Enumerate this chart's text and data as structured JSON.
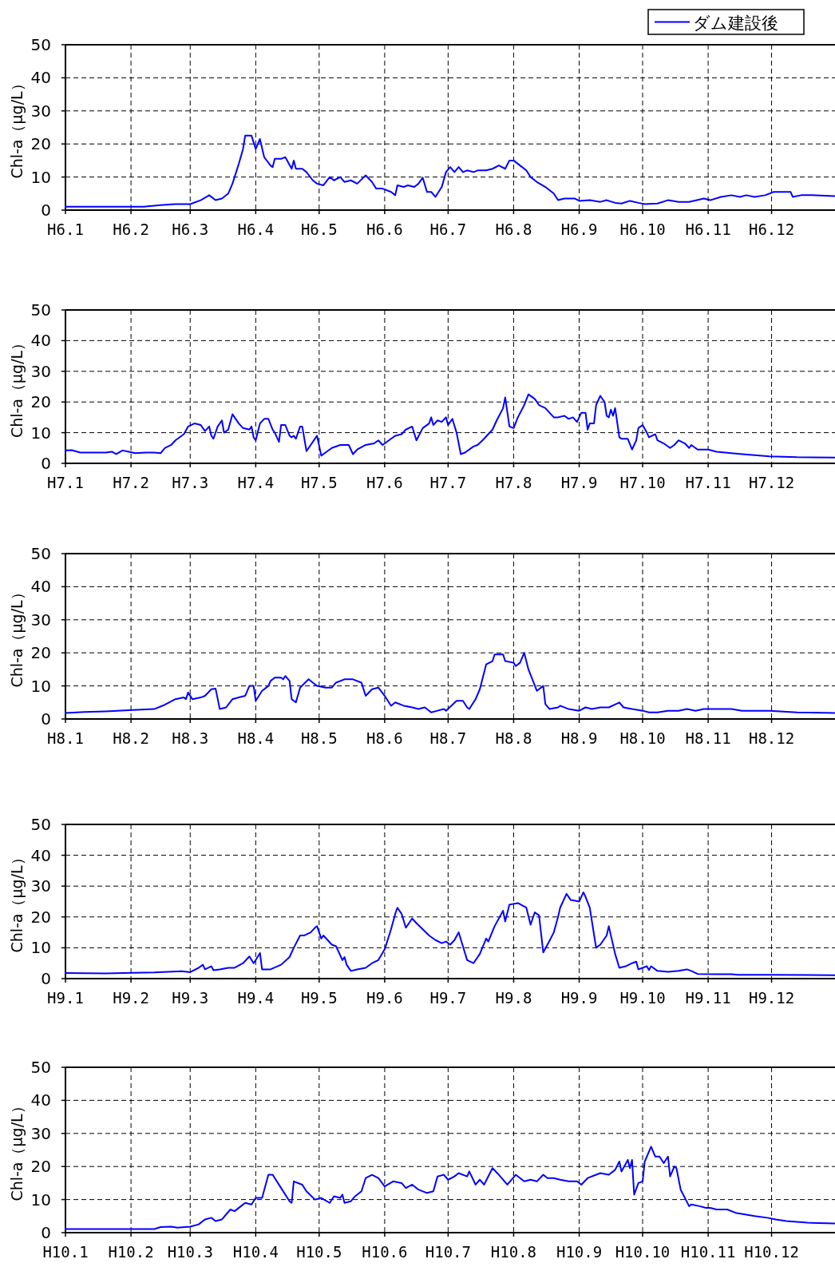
{
  "chart_data": [
    {
      "type": "line",
      "ylabel": "Chl-a（μg/L）",
      "legend": "top right",
      "grid": true,
      "xlim": [
        "--01-01",
        "--12-31"
      ],
      "ylim": [
        0,
        50
      ],
      "yticks": [
        0,
        10,
        20,
        30,
        40,
        50
      ],
      "xticks": [
        {
          "value": "--01-01",
          "label": "H6.1"
        },
        {
          "value": "--02-01",
          "label": "H6.2"
        },
        {
          "value": "--03-01",
          "label": "H6.3"
        },
        {
          "value": "--04-01",
          "label": "H6.4"
        },
        {
          "value": "--05-01",
          "label": "H6.5"
        },
        {
          "value": "--06-01",
          "label": "H6.6"
        },
        {
          "value": "--07-01",
          "label": "H6.7"
        },
        {
          "value": "--08-01",
          "label": "H6.8"
        },
        {
          "value": "--09-01",
          "label": "H6.9"
        },
        {
          "value": "--10-01",
          "label": "H6.10"
        },
        {
          "value": "--11-01",
          "label": "H6.11"
        },
        {
          "value": "--12-01",
          "label": "H6.12"
        }
      ],
      "series": [
        {
          "name": "ダム建設後",
          "color": "#0000ff",
          "x": [
            "--01-01",
            "--02-07",
            "--02-15",
            "--02-22",
            "--03-01",
            "--03-06",
            "--03-10",
            "--03-13",
            "--03-16",
            "--03-19",
            "--03-21",
            "--03-24",
            "--03-26",
            "--03-27",
            "--03-30",
            "--04-01",
            "--04-03",
            "--04-05",
            "--04-08",
            "--04-09",
            "--04-10",
            "--04-13",
            "--04-15",
            "--04-18",
            "--04-19",
            "--04-20",
            "--04-23",
            "--04-25",
            "--04-28",
            "--04-30",
            "--05-03",
            "--05-06",
            "--05-08",
            "--05-11",
            "--05-13",
            "--05-16",
            "--05-19",
            "--05-23",
            "--05-26",
            "--05-28",
            "--05-31",
            "--06-04",
            "--06-06",
            "--06-07",
            "--06-10",
            "--06-12",
            "--06-15",
            "--06-17",
            "--06-19",
            "--06-21",
            "--06-23",
            "--06-25",
            "--06-26",
            "--06-28",
            "--06-30",
            "--07-02",
            "--07-04",
            "--07-06",
            "--07-08",
            "--07-10",
            "--07-13",
            "--07-15",
            "--07-19",
            "--07-22",
            "--07-25",
            "--07-28",
            "--07-30",
            "--08-01",
            "--08-04",
            "--08-07",
            "--08-09",
            "--08-12",
            "--08-16",
            "--08-20",
            "--08-22",
            "--08-25",
            "--08-30",
            "--09-01",
            "--09-06",
            "--09-11",
            "--09-14",
            "--09-18",
            "--09-21",
            "--09-25",
            "--09-29",
            "--10-02",
            "--10-08",
            "--10-13",
            "--10-18",
            "--10-23",
            "--10-30",
            "--11-02",
            "--11-07",
            "--11-12",
            "--11-16",
            "--11-19",
            "--11-23",
            "--11-28",
            "--12-02",
            "--12-07",
            "--12-10",
            "--12-11",
            "--12-15",
            "--12-20",
            "--12-31"
          ],
          "values": [
            1,
            1,
            1.5,
            1.8,
            1.8,
            3,
            4.5,
            3,
            3.5,
            5,
            8,
            14,
            18.5,
            22.5,
            22.5,
            18.5,
            21.5,
            16,
            13.5,
            13,
            15.5,
            15.5,
            16,
            12.5,
            15,
            12.5,
            12.5,
            11.5,
            9,
            8,
            7.5,
            10,
            9,
            10,
            8.5,
            9,
            8,
            10.5,
            8.5,
            6.5,
            6.5,
            5.5,
            4.5,
            7.5,
            7,
            7.5,
            7,
            8,
            9.8,
            5.5,
            5.5,
            4,
            5,
            7,
            11.5,
            13,
            11.5,
            13,
            11.5,
            12,
            11.5,
            12,
            12,
            12.5,
            13.5,
            12.5,
            15,
            15,
            13.5,
            12,
            10,
            8.5,
            7,
            5,
            3,
            3.5,
            3.5,
            2.8,
            3,
            2.5,
            3,
            2.2,
            2,
            2.8,
            2.2,
            1.8,
            2,
            3,
            2.5,
            2.5,
            3.5,
            3,
            4,
            4.5,
            4,
            4.5,
            4,
            4.5,
            5.5,
            5.5,
            5.5,
            4,
            4.5,
            4.5,
            4.2
          ]
        }
      ]
    },
    {
      "type": "line",
      "ylabel": "Chl-a（μg/L）",
      "grid": true,
      "xlim": [
        "--01-01",
        "--12-31"
      ],
      "ylim": [
        0,
        50
      ],
      "yticks": [
        0,
        10,
        20,
        30,
        40,
        50
      ],
      "xticks": [
        {
          "value": "--01-01",
          "label": "H7.1"
        },
        {
          "value": "--02-01",
          "label": "H7.2"
        },
        {
          "value": "--03-01",
          "label": "H7.3"
        },
        {
          "value": "--04-01",
          "label": "H7.4"
        },
        {
          "value": "--05-01",
          "label": "H7.5"
        },
        {
          "value": "--06-01",
          "label": "H7.6"
        },
        {
          "value": "--07-01",
          "label": "H7.7"
        },
        {
          "value": "--08-01",
          "label": "H7.8"
        },
        {
          "value": "--09-01",
          "label": "H7.9"
        },
        {
          "value": "--10-01",
          "label": "H7.10"
        },
        {
          "value": "--11-01",
          "label": "H7.11"
        },
        {
          "value": "--12-01",
          "label": "H7.12"
        }
      ],
      "series": [
        {
          "color": "#0000ff",
          "x": [
            "--01-01",
            "--01-04",
            "--01-08",
            "--01-13",
            "--01-20",
            "--01-23",
            "--01-25",
            "--01-28",
            "--01-31",
            "--02-03",
            "--02-08",
            "--02-12",
            "--02-15",
            "--02-17",
            "--02-20",
            "--02-22",
            "--02-26",
            "--02-28",
            "--03-03",
            "--03-06",
            "--03-08",
            "--03-10",
            "--03-11",
            "--03-12",
            "--03-14",
            "--03-16",
            "--03-17",
            "--03-19",
            "--03-21",
            "--03-24",
            "--03-26",
            "--03-29",
            "--03-30",
            "--03-31",
            "--04-01",
            "--04-03",
            "--04-05",
            "--04-07",
            "--04-09",
            "--04-10",
            "--04-12",
            "--04-13",
            "--04-15",
            "--04-17",
            "--04-18",
            "--04-19",
            "--04-20",
            "--04-22",
            "--04-23",
            "--04-25",
            "--04-27",
            "--04-28",
            "--04-30",
            "--05-02",
            "--05-04",
            "--05-07",
            "--05-11",
            "--05-15",
            "--05-17",
            "--05-19",
            "--05-23",
            "--05-27",
            "--05-29",
            "--05-31",
            "--06-04",
            "--06-06",
            "--06-09",
            "--06-11",
            "--06-14",
            "--06-16",
            "--06-19",
            "--06-22",
            "--06-23",
            "--06-24",
            "--06-26",
            "--06-28",
            "--06-30",
            "--07-01",
            "--07-03",
            "--07-05",
            "--07-07",
            "--07-09",
            "--07-13",
            "--07-15",
            "--07-18",
            "--07-22",
            "--07-24",
            "--07-27",
            "--07-28",
            "--07-30",
            "--08-01",
            "--08-03",
            "--08-06",
            "--08-08",
            "--08-11",
            "--08-13",
            "--08-16",
            "--08-20",
            "--08-22",
            "--08-25",
            "--08-27",
            "--08-29",
            "--08-31",
            "--09-02",
            "--09-04",
            "--09-05",
            "--09-06",
            "--09-08",
            "--09-09",
            "--09-11",
            "--09-13",
            "--09-14",
            "--09-15",
            "--09-16",
            "--09-17",
            "--09-18",
            "--09-20",
            "--09-21",
            "--09-24",
            "--09-26",
            "--09-28",
            "--09-29",
            "--10-01",
            "--10-03",
            "--10-04",
            "--10-07",
            "--10-08",
            "--10-11",
            "--10-14",
            "--10-16",
            "--10-18",
            "--10-21",
            "--10-23",
            "--10-24",
            "--10-27",
            "--11-01",
            "--11-05",
            "--11-17",
            "--11-30",
            "--12-13",
            "--12-31"
          ],
          "values": [
            4.2,
            4.3,
            3.5,
            3.5,
            3.5,
            3.8,
            3,
            4.2,
            3.8,
            3.3,
            3.5,
            3.5,
            3.3,
            5,
            6,
            7.5,
            9.5,
            12,
            13,
            12.5,
            10.5,
            12,
            9,
            8,
            12,
            14,
            10,
            11,
            16,
            13,
            11.5,
            11,
            12,
            8.5,
            7.5,
            13,
            14.5,
            14.5,
            11,
            10,
            7,
            12.5,
            12.5,
            9,
            8.5,
            9,
            8,
            12,
            12,
            4,
            6,
            7,
            9,
            2.5,
            3.5,
            5,
            6,
            6,
            3,
            4.5,
            6,
            6.5,
            7.5,
            6,
            8,
            9,
            9.5,
            11,
            12,
            7.5,
            11.5,
            13,
            15,
            12.5,
            14,
            13.5,
            15,
            12.5,
            14.5,
            10,
            3,
            3.5,
            5.5,
            6,
            8,
            11,
            14,
            18,
            21.5,
            12,
            11.5,
            15,
            19,
            22.5,
            21,
            19,
            18,
            15,
            15,
            15.5,
            14.5,
            15,
            13.5,
            16.5,
            16.5,
            11,
            13,
            13,
            19,
            22,
            20,
            15.5,
            15,
            17.5,
            15.5,
            18,
            8.5,
            8,
            8,
            4.5,
            7.5,
            11.5,
            12.5,
            10,
            8.5,
            9.5,
            7.5,
            6.5,
            5,
            6,
            7.5,
            6.5,
            5,
            6,
            4.5,
            4.5,
            3.8,
            3,
            2.3,
            2,
            1.9
          ]
        }
      ]
    },
    {
      "type": "line",
      "ylabel": "Chl-a（μg/L）",
      "grid": true,
      "xlim": [
        "--01-01",
        "--12-31"
      ],
      "ylim": [
        0,
        50
      ],
      "yticks": [
        0,
        10,
        20,
        30,
        40,
        50
      ],
      "xticks": [
        {
          "value": "--01-01",
          "label": "H8.1"
        },
        {
          "value": "--02-01",
          "label": "H8.2"
        },
        {
          "value": "--03-01",
          "label": "H8.3"
        },
        {
          "value": "--04-01",
          "label": "H8.4"
        },
        {
          "value": "--05-01",
          "label": "H8.5"
        },
        {
          "value": "--06-01",
          "label": "H8.6"
        },
        {
          "value": "--07-01",
          "label": "H8.7"
        },
        {
          "value": "--08-01",
          "label": "H8.8"
        },
        {
          "value": "--09-01",
          "label": "H8.9"
        },
        {
          "value": "--10-01",
          "label": "H8.10"
        },
        {
          "value": "--11-01",
          "label": "H8.11"
        },
        {
          "value": "--12-01",
          "label": "H8.12"
        }
      ],
      "series": [
        {
          "color": "#0000ff",
          "x": [
            "--01-01",
            "--01-10",
            "--01-20",
            "--02-02",
            "--02-12",
            "--02-17",
            "--02-22",
            "--02-26",
            "--02-27",
            "--02-28",
            "--03-02",
            "--03-06",
            "--03-08",
            "--03-11",
            "--03-13",
            "--03-15",
            "--03-18",
            "--03-21",
            "--03-24",
            "--03-27",
            "--03-29",
            "--03-31",
            "--04-01",
            "--04-04",
            "--04-07",
            "--04-08",
            "--04-10",
            "--04-13",
            "--04-14",
            "--04-15",
            "--04-17",
            "--04-18",
            "--04-20",
            "--04-22",
            "--04-26",
            "--04-28",
            "--04-30",
            "--05-04",
            "--05-07",
            "--05-09",
            "--05-13",
            "--05-17",
            "--05-21",
            "--05-23",
            "--05-26",
            "--05-29",
            "--06-01",
            "--06-04",
            "--06-06",
            "--06-10",
            "--06-14",
            "--06-17",
            "--06-20",
            "--06-23",
            "--06-26",
            "--06-29",
            "--06-30",
            "--07-05",
            "--07-08",
            "--07-10",
            "--07-11",
            "--07-14",
            "--07-16",
            "--07-19",
            "--07-22",
            "--07-23",
            "--07-27",
            "--07-28",
            "--08-01",
            "--08-02",
            "--08-04",
            "--08-06",
            "--08-08",
            "--08-12",
            "--08-15",
            "--08-16",
            "--08-18",
            "--08-22",
            "--08-23",
            "--08-27",
            "--09-01",
            "--09-04",
            "--09-07",
            "--09-11",
            "--09-15",
            "--09-20",
            "--09-22",
            "--09-26",
            "--10-01",
            "--10-04",
            "--10-08",
            "--10-13",
            "--10-18",
            "--10-22",
            "--10-26",
            "--10-30",
            "--11-04",
            "--11-07",
            "--11-12",
            "--11-17",
            "--11-30",
            "--12-13",
            "--12-31"
          ],
          "values": [
            1.8,
            2.1,
            2.3,
            2.7,
            3,
            4.3,
            6,
            6.5,
            6,
            8,
            6,
            6.5,
            7,
            9,
            9.2,
            3,
            3.5,
            6,
            6.5,
            7,
            10,
            10,
            5.5,
            8.5,
            10,
            11.5,
            12.5,
            12.5,
            12,
            13,
            11.5,
            6,
            5,
            9.5,
            12,
            11,
            10,
            9.5,
            9.5,
            11,
            12,
            12,
            11,
            7,
            9,
            9.5,
            7,
            4,
            5,
            4,
            3.5,
            3,
            3.5,
            2,
            2.5,
            3,
            2.5,
            5.5,
            5.5,
            3.5,
            3,
            6,
            9,
            16.5,
            17.5,
            19.5,
            19.5,
            17.5,
            17,
            16,
            17,
            20,
            15,
            8.5,
            10,
            4.5,
            3,
            3.5,
            4,
            3,
            2.5,
            3.5,
            3,
            3.5,
            3.5,
            5,
            3.5,
            3,
            2.5,
            2,
            2,
            2.5,
            2.5,
            3,
            2.5,
            3,
            3,
            3,
            3,
            2.5,
            2.5,
            2,
            1.8
          ]
        }
      ]
    },
    {
      "type": "line",
      "ylabel": "Chl-a（μg/L）",
      "grid": true,
      "xlim": [
        "--01-01",
        "--12-31"
      ],
      "ylim": [
        0,
        50
      ],
      "yticks": [
        0,
        10,
        20,
        30,
        40,
        50
      ],
      "xticks": [
        {
          "value": "--01-01",
          "label": "H9.1"
        },
        {
          "value": "--02-01",
          "label": "H9.2"
        },
        {
          "value": "--03-01",
          "label": "H9.3"
        },
        {
          "value": "--04-01",
          "label": "H9.4"
        },
        {
          "value": "--05-01",
          "label": "H9.5"
        },
        {
          "value": "--06-01",
          "label": "H9.6"
        },
        {
          "value": "--07-01",
          "label": "H9.7"
        },
        {
          "value": "--08-01",
          "label": "H9.8"
        },
        {
          "value": "--09-01",
          "label": "H9.9"
        },
        {
          "value": "--10-01",
          "label": "H9.10"
        },
        {
          "value": "--11-01",
          "label": "H9.11"
        },
        {
          "value": "--12-01",
          "label": "H9.12"
        }
      ],
      "series": [
        {
          "color": "#0000ff",
          "x": [
            "--01-01",
            "--01-20",
            "--02-02",
            "--02-12",
            "--02-25",
            "--03-01",
            "--03-05",
            "--03-07",
            "--03-08",
            "--03-11",
            "--03-12",
            "--03-15",
            "--03-19",
            "--03-22",
            "--03-26",
            "--03-29",
            "--03-31",
            "--04-01",
            "--04-03",
            "--04-04",
            "--04-08",
            "--04-13",
            "--04-17",
            "--04-19",
            "--04-22",
            "--04-24",
            "--04-27",
            "--04-29",
            "--04-30",
            "--05-02",
            "--05-03",
            "--05-07",
            "--05-09",
            "--05-12",
            "--05-13",
            "--05-14",
            "--05-16",
            "--05-19",
            "--05-23",
            "--05-26",
            "--05-29",
            "--06-01",
            "--06-04",
            "--06-06",
            "--06-07",
            "--06-09",
            "--06-11",
            "--06-12",
            "--06-14",
            "--06-16",
            "--06-19",
            "--06-22",
            "--06-25",
            "--06-28",
            "--06-30",
            "--07-02",
            "--07-04",
            "--07-06",
            "--07-08",
            "--07-10",
            "--07-13",
            "--07-16",
            "--07-19",
            "--07-20",
            "--07-23",
            "--07-27",
            "--07-28",
            "--07-30",
            "--08-03",
            "--08-07",
            "--08-09",
            "--08-11",
            "--08-13",
            "--08-15",
            "--08-17",
            "--08-20",
            "--08-22",
            "--08-23",
            "--08-26",
            "--08-28",
            "--09-01",
            "--09-03",
            "--09-04",
            "--09-06",
            "--09-09",
            "--09-11",
            "--09-14",
            "--09-15",
            "--09-18",
            "--09-20",
            "--09-23",
            "--09-26",
            "--09-28",
            "--09-29",
            "--10-01",
            "--10-03",
            "--10-04",
            "--10-05",
            "--10-08",
            "--10-13",
            "--10-18",
            "--10-22",
            "--10-24",
            "--10-27",
            "--11-05",
            "--11-12",
            "--11-15",
            "--11-30",
            "--12-31"
          ],
          "values": [
            1.8,
            1.7,
            1.9,
            2,
            2.4,
            2.1,
            3.5,
            4.5,
            3,
            4,
            2.7,
            3,
            3.5,
            3.5,
            5,
            7.2,
            5,
            6,
            8.3,
            3,
            3,
            4.5,
            7,
            10,
            14,
            14,
            15,
            16.5,
            17,
            13,
            14,
            11,
            10.5,
            6,
            7,
            4.5,
            2.5,
            3,
            3.5,
            5,
            6,
            9.5,
            16,
            21,
            23,
            21,
            16.5,
            17.5,
            19.5,
            18,
            16,
            14,
            12.5,
            11.5,
            12,
            11,
            12.5,
            15,
            10.5,
            6,
            5,
            8,
            13,
            12,
            17,
            22,
            18.5,
            24,
            24.5,
            23,
            17.5,
            21.5,
            20.5,
            8.5,
            11,
            15,
            20,
            23,
            27.5,
            25.5,
            25,
            28,
            26.5,
            23,
            10,
            11,
            14,
            17,
            8,
            3.5,
            4,
            5,
            5.5,
            3,
            3.5,
            4,
            2.8,
            4,
            2.5,
            2.2,
            2.5,
            3,
            2.5,
            1.5,
            1.4,
            1.4,
            1.2,
            1.2,
            1.1
          ]
        }
      ]
    },
    {
      "type": "line",
      "ylabel": "Chl-a（μg/L）",
      "grid": true,
      "xlim": [
        "--01-01",
        "--12-31"
      ],
      "ylim": [
        0,
        50
      ],
      "yticks": [
        0,
        10,
        20,
        30,
        40,
        50
      ],
      "xticks": [
        {
          "value": "--01-01",
          "label": "H10.1"
        },
        {
          "value": "--02-01",
          "label": "H10.2"
        },
        {
          "value": "--03-01",
          "label": "H10.3"
        },
        {
          "value": "--04-01",
          "label": "H10.4"
        },
        {
          "value": "--05-01",
          "label": "H10.5"
        },
        {
          "value": "--06-01",
          "label": "H10.6"
        },
        {
          "value": "--07-01",
          "label": "H10.7"
        },
        {
          "value": "--08-01",
          "label": "H10.8"
        },
        {
          "value": "--09-01",
          "label": "H10.9"
        },
        {
          "value": "--10-01",
          "label": "H10.10"
        },
        {
          "value": "--11-01",
          "label": "H10.11"
        },
        {
          "value": "--12-01",
          "label": "H10.12"
        }
      ],
      "series": [
        {
          "color": "#0000ff",
          "x": [
            "--01-01",
            "--02-12",
            "--02-15",
            "--02-20",
            "--02-23",
            "--03-01",
            "--03-05",
            "--03-08",
            "--03-11",
            "--03-13",
            "--03-16",
            "--03-20",
            "--03-22",
            "--03-25",
            "--03-27",
            "--03-30",
            "--04-01",
            "--04-04",
            "--04-07",
            "--04-09",
            "--04-13",
            "--04-17",
            "--04-18",
            "--04-19",
            "--04-23",
            "--04-25",
            "--04-29",
            "--05-02",
            "--05-06",
            "--05-08",
            "--05-11",
            "--05-12",
            "--05-13",
            "--05-16",
            "--05-18",
            "--05-21",
            "--05-23",
            "--05-26",
            "--05-29",
            "--06-01",
            "--06-05",
            "--06-09",
            "--06-11",
            "--06-14",
            "--06-17",
            "--06-21",
            "--06-24",
            "--06-26",
            "--06-29",
            "--07-01",
            "--07-04",
            "--07-06",
            "--07-10",
            "--07-11",
            "--07-14",
            "--07-16",
            "--07-18",
            "--07-22",
            "--07-25",
            "--07-29",
            "--08-02",
            "--08-06",
            "--08-09",
            "--08-12",
            "--08-15",
            "--08-17",
            "--08-20",
            "--08-23",
            "--08-27",
            "--08-31",
            "--09-02",
            "--09-05",
            "--09-09",
            "--09-11",
            "--09-15",
            "--09-18",
            "--09-20",
            "--09-21",
            "--09-24",
            "--09-25",
            "--09-26",
            "--09-27",
            "--09-29",
            "--10-01",
            "--10-02",
            "--10-03",
            "--10-05",
            "--10-07",
            "--10-09",
            "--10-11",
            "--10-13",
            "--10-14",
            "--10-16",
            "--10-17",
            "--10-19",
            "--10-23",
            "--10-24",
            "--10-28",
            "--10-31",
            "--11-02",
            "--11-05",
            "--11-10",
            "--11-14",
            "--11-23",
            "--11-29",
            "--12-03",
            "--12-08",
            "--12-18",
            "--12-31"
          ],
          "values": [
            1.1,
            1.1,
            1.7,
            1.8,
            1.5,
            1.8,
            2.5,
            4,
            4.5,
            3.5,
            4,
            7,
            6.5,
            8,
            9,
            8.5,
            10.5,
            10.5,
            17.5,
            17.5,
            13.5,
            9.5,
            9,
            15.5,
            14.5,
            12.5,
            10,
            10.5,
            9,
            11,
            10.5,
            11.5,
            9,
            9.5,
            11,
            12.5,
            16.5,
            17.5,
            16.5,
            14,
            15.5,
            15,
            13.5,
            14.5,
            13,
            12,
            12.5,
            17,
            17.5,
            16,
            17,
            18,
            17,
            18.5,
            14.5,
            16,
            14.5,
            19.5,
            17.5,
            14.5,
            17.5,
            15.5,
            16,
            15.5,
            17.5,
            16.5,
            16.5,
            16,
            15.5,
            15.5,
            14.5,
            16.5,
            17.5,
            18,
            17.5,
            19,
            21.5,
            18.5,
            22,
            19.5,
            22,
            11.5,
            15,
            15.5,
            21.5,
            23,
            26,
            23,
            23,
            21,
            23,
            17,
            20,
            19.5,
            13,
            8,
            8.5,
            8,
            7.5,
            7.5,
            7,
            7,
            6,
            5,
            4.5,
            4,
            3.5,
            3,
            2.8
          ]
        }
      ]
    }
  ]
}
